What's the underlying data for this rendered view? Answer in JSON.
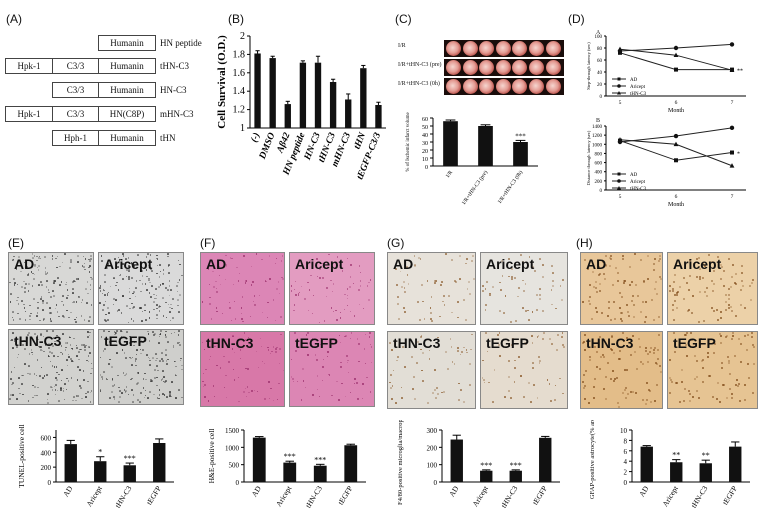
{
  "panels": {
    "A": {
      "label": "(A)",
      "rows": [
        {
          "boxes": [
            "Humanin"
          ],
          "name": "HN peptide"
        },
        {
          "boxes": [
            "Hpk-1",
            "C3/3",
            "Humanin"
          ],
          "name": "tHN-C3"
        },
        {
          "boxes": [
            "C3/3",
            "Humanin"
          ],
          "name": "HN-C3"
        },
        {
          "boxes": [
            "Hpk-1",
            "C3/3",
            "HN(C8P)"
          ],
          "name": "mHN-C3"
        },
        {
          "boxes": [
            "Hph-1",
            "Humanin"
          ],
          "name": "tHN"
        }
      ]
    },
    "B": {
      "label": "(B)"
    },
    "C": {
      "label": "(C)",
      "row_labels": [
        "I/R",
        "I/R+tHN-C3 (pre)",
        "I/R+tHN-C3 (0h)"
      ]
    },
    "D": {
      "label": "(D)",
      "sub_a": "A",
      "sub_b": "B"
    },
    "E": {
      "label": "(E)",
      "images": [
        "AD",
        "Aricept",
        "tHN-C3",
        "tEGFP"
      ]
    },
    "F": {
      "label": "(F)",
      "images": [
        "AD",
        "Aricept",
        "tHN-C3",
        "tEGFP"
      ]
    },
    "G": {
      "label": "(G)",
      "images": [
        "AD",
        "Aricept",
        "tHN-C3",
        "tEGFP"
      ]
    },
    "H": {
      "label": "(H)",
      "images": [
        "AD",
        "Aricept",
        "tHN-C3",
        "tEGFP"
      ]
    }
  },
  "chart_data": [
    {
      "id": "B",
      "type": "bar",
      "categories": [
        "(-)",
        "DMSO",
        "Aβ42",
        "HN peptide",
        "HN-C3",
        "tHN-C3",
        "mHN-C3",
        "tHN",
        "tEGFP-C3/3"
      ],
      "values": [
        1.81,
        1.76,
        1.26,
        1.71,
        1.71,
        1.5,
        1.31,
        1.65,
        1.25
      ],
      "errors": [
        0.03,
        0.02,
        0.03,
        0.02,
        0.07,
        0.03,
        0.06,
        0.03,
        0.03
      ],
      "ylabel": "Cell Survival (O.D.)",
      "yticks": [
        "1",
        "1.2",
        "1.4",
        "1.6",
        "1.8",
        "2"
      ],
      "ylim": [
        1,
        2
      ]
    },
    {
      "id": "C",
      "type": "bar",
      "categories": [
        "I/R",
        "I/R+tHN-C3 (pre)",
        "I/R+tHN-C3 (0h)"
      ],
      "values": [
        56,
        50,
        30
      ],
      "errors": [
        1.5,
        1.5,
        2
      ],
      "marks": [
        "",
        "",
        "***"
      ],
      "ylabel": "% of Ischemic infarct volume",
      "yticks": [
        "0",
        "10",
        "20",
        "30",
        "40",
        "50",
        "60"
      ],
      "ylim": [
        0,
        60
      ]
    },
    {
      "id": "D-A",
      "type": "line",
      "x": [
        5,
        6,
        7
      ],
      "xlabel": "Month",
      "ylabel": "Step-through latency (sec)",
      "yticks": [
        "0",
        "20",
        "40",
        "60",
        "80",
        "100"
      ],
      "ylim": [
        0,
        100
      ],
      "series": [
        {
          "name": "AD",
          "values": [
            72,
            44,
            44
          ],
          "marker": "square"
        },
        {
          "name": "Aricept",
          "values": [
            75,
            80,
            86
          ],
          "marker": "circle"
        },
        {
          "name": "tHN-C3",
          "values": [
            78,
            68,
            43
          ],
          "marker": "triangle"
        }
      ],
      "annotation": "**"
    },
    {
      "id": "D-B",
      "type": "line",
      "x": [
        5,
        6,
        7
      ],
      "xlabel": "Month",
      "ylabel": "Distance through latency (sec)",
      "yticks": [
        "0",
        "200",
        "400",
        "600",
        "800",
        "1000",
        "1200",
        "1400"
      ],
      "ylim": [
        0,
        1400
      ],
      "series": [
        {
          "name": "AD",
          "values": [
            1080,
            650,
            820
          ],
          "marker": "square"
        },
        {
          "name": "Aricept",
          "values": [
            1050,
            1180,
            1360
          ],
          "marker": "circle"
        },
        {
          "name": "tHN-C3",
          "values": [
            1100,
            1000,
            530
          ],
          "marker": "triangle"
        }
      ],
      "annotation": "*"
    },
    {
      "id": "E",
      "type": "bar",
      "categories": [
        "AD",
        "Aricept",
        "tHN-C3",
        "tEGFP"
      ],
      "values": [
        510,
        280,
        225,
        525
      ],
      "errors": [
        50,
        60,
        30,
        55
      ],
      "marks": [
        "",
        "*",
        "***",
        ""
      ],
      "ylabel": "TUNEL-positive cell",
      "yticks": [
        "0",
        "200",
        "400",
        "600"
      ],
      "ylim": [
        0,
        700
      ]
    },
    {
      "id": "F",
      "type": "bar",
      "categories": [
        "AD",
        "Aricept",
        "tHN-C3",
        "tEGFP"
      ],
      "values": [
        1280,
        560,
        470,
        1060
      ],
      "errors": [
        30,
        40,
        40,
        30
      ],
      "marks": [
        "",
        "***",
        "***",
        ""
      ],
      "ylabel": "H&E-positive cell",
      "yticks": [
        "0",
        "500",
        "1000",
        "1500"
      ],
      "ylim": [
        0,
        1500
      ]
    },
    {
      "id": "G",
      "type": "bar",
      "categories": [
        "AD",
        "Aricept",
        "tHN-C3",
        "tEGFP"
      ],
      "values": [
        245,
        65,
        65,
        255
      ],
      "errors": [
        25,
        5,
        5,
        8
      ],
      "marks": [
        "",
        "***",
        "***",
        ""
      ],
      "ylabel": "F4/80-positive microglia/macrophage",
      "yticks": [
        "0",
        "100",
        "200",
        "300"
      ],
      "ylim": [
        0,
        300
      ]
    },
    {
      "id": "H",
      "type": "bar",
      "categories": [
        "AD",
        "Aricept",
        "tHN-C3",
        "tEGFP"
      ],
      "values": [
        6.8,
        3.8,
        3.6,
        6.8
      ],
      "errors": [
        0.2,
        0.5,
        0.6,
        0.9
      ],
      "marks": [
        "",
        "**",
        "**",
        ""
      ],
      "ylabel": "GFAP-positive astrocyte(% area)",
      "yticks": [
        "0",
        "2",
        "4",
        "6",
        "8",
        "10"
      ],
      "ylim": [
        0,
        10
      ]
    }
  ],
  "colors": {
    "bar": "#111111",
    "line": "#222222",
    "f_stain": "#dd7fae",
    "g_stain": "#e6e2dc",
    "h_stain": "#e9c89b",
    "e_stain": "#cfcfcf"
  }
}
